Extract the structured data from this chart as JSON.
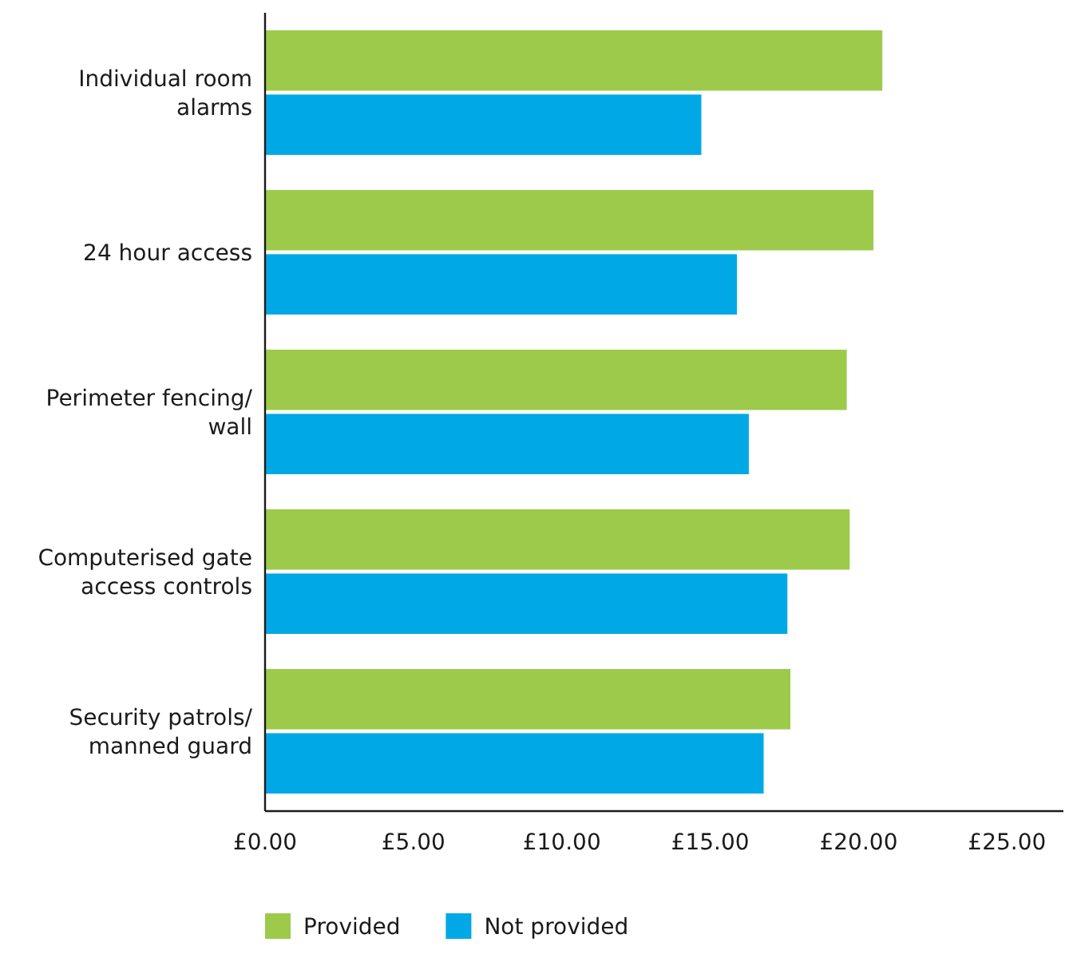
{
  "chart_data": {
    "type": "bar",
    "orientation": "horizontal",
    "categories": [
      "Individual room alarms",
      "24 hour access",
      "Perimeter fencing/ wall",
      "Computerised gate access controls",
      "Security patrols/ manned guard"
    ],
    "series": [
      {
        "name": "Provided",
        "color": "#9dca4b",
        "values": [
          20.8,
          20.5,
          19.6,
          19.7,
          17.7
        ]
      },
      {
        "name": "Not provided",
        "color": "#00a9e6",
        "values": [
          14.7,
          15.9,
          16.3,
          17.6,
          16.8
        ]
      }
    ],
    "xlim": [
      0,
      26.9
    ],
    "xticks": [
      {
        "value": 0,
        "label": "£0.00"
      },
      {
        "value": 5,
        "label": "£5.00"
      },
      {
        "value": 10,
        "label": "£10.00"
      },
      {
        "value": 15,
        "label": "£15.00"
      },
      {
        "value": 20,
        "label": "£20.00"
      },
      {
        "value": 25,
        "label": "£25.00"
      }
    ],
    "grid": false,
    "legend": "bottom"
  }
}
